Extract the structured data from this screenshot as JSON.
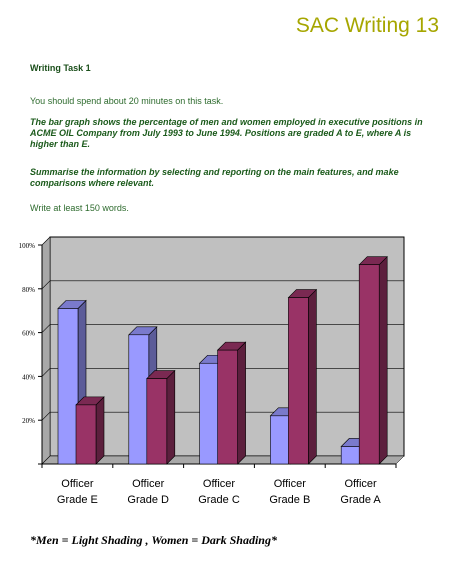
{
  "header": {
    "title": "SAC Writing 13"
  },
  "task": {
    "label": "Writing Task 1",
    "time_note": "You should spend about 20 minutes on this task.",
    "prompt": "The bar graph shows the percentage of men and women employed in executive positions in ACME OIL Company from July 1993 to June 1994. Positions are graded A to E, where A is higher than E.",
    "instruction": "Summarise the information by selecting and reporting on the main features, and make comparisons where relevant.",
    "word_count": "Write at least 150 words."
  },
  "colors": {
    "men": "#9999ff",
    "women": "#993366",
    "plot_bg": "#c0c0c0"
  },
  "chart_data": {
    "type": "bar",
    "categories": [
      [
        "Officer",
        "Grade E"
      ],
      [
        "Officer",
        "Grade D"
      ],
      [
        "Officer",
        "Grade C"
      ],
      [
        "Officer",
        "Grade B"
      ],
      [
        "Officer",
        "Grade A"
      ]
    ],
    "series": [
      {
        "values": [
          71,
          59,
          46,
          22,
          8
        ]
      },
      {
        "values": [
          27,
          39,
          52,
          76,
          91
        ]
      }
    ],
    "yticks": [
      "",
      "20%",
      "40%",
      "60%",
      "80%",
      "100%"
    ],
    "ylim": [
      0,
      100
    ],
    "grid": true
  },
  "footer": {
    "legend_note": "*Men = Light Shading  , Women = Dark Shading*"
  }
}
